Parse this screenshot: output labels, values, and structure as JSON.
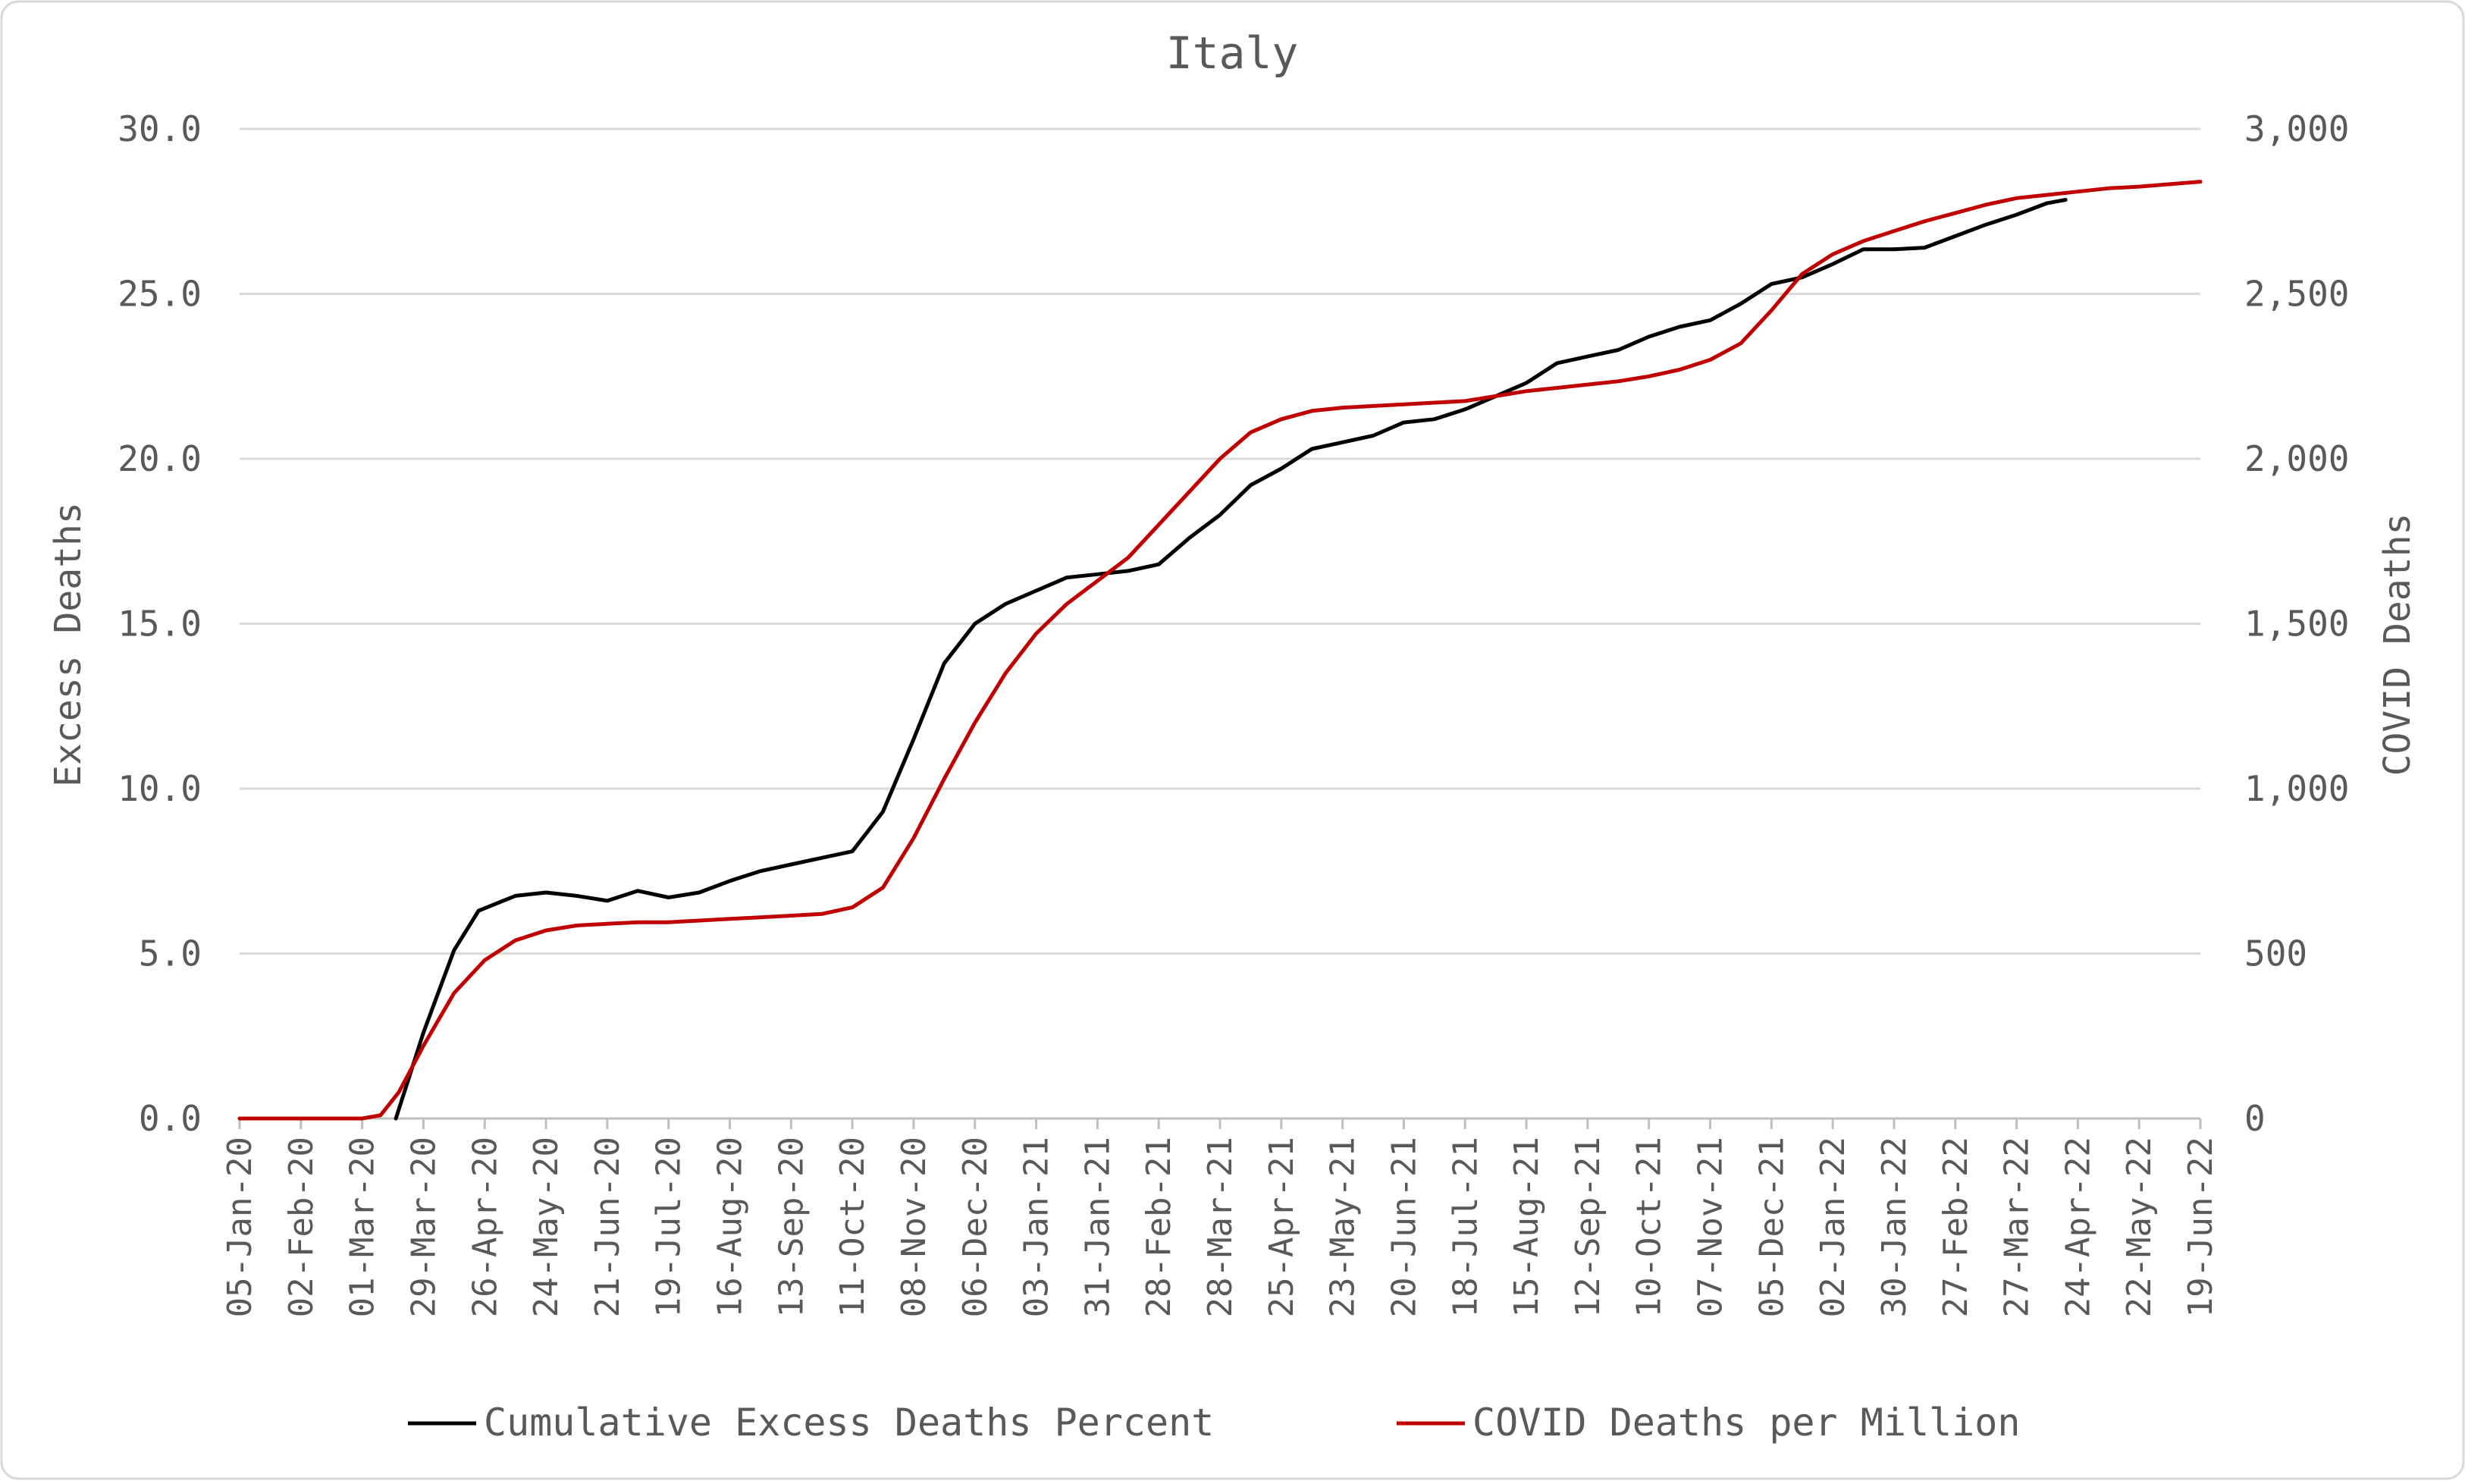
{
  "chart_data": {
    "type": "line",
    "title": "Italy",
    "ylabel_left": "Excess Deaths",
    "ylabel_right": "COVID Deaths",
    "y_left": {
      "min": 0,
      "max": 30,
      "ticks": [
        "0.0",
        "5.0",
        "10.0",
        "15.0",
        "20.0",
        "25.0",
        "30.0"
      ]
    },
    "y_right": {
      "min": 0,
      "max": 3000,
      "ticks": [
        "0",
        "500",
        "1,000",
        "1,500",
        "2,000",
        "2,500",
        "3,000"
      ]
    },
    "x_tick_labels": [
      "05-Jan-20",
      "02-Feb-20",
      "01-Mar-20",
      "29-Mar-20",
      "26-Apr-20",
      "24-May-20",
      "21-Jun-20",
      "19-Jul-20",
      "16-Aug-20",
      "13-Sep-20",
      "11-Oct-20",
      "08-Nov-20",
      "06-Dec-20",
      "03-Jan-21",
      "31-Jan-21",
      "28-Feb-21",
      "28-Mar-21",
      "25-Apr-21",
      "23-May-21",
      "20-Jun-21",
      "18-Jul-21",
      "15-Aug-21",
      "12-Sep-21",
      "10-Oct-21",
      "07-Nov-21",
      "05-Dec-21",
      "02-Jan-22",
      "30-Jan-22",
      "27-Feb-22",
      "27-Mar-22",
      "24-Apr-22",
      "22-May-22",
      "19-Jun-22"
    ],
    "grid": "horizontal",
    "legend_position": "bottom",
    "series": [
      {
        "name": "Cumulative Excess Deaths Percent",
        "axis": "left",
        "color": "#000000",
        "points": [
          [
            2.55,
            0
          ],
          [
            3.0,
            2.6
          ],
          [
            3.5,
            5.1
          ],
          [
            3.9,
            6.3
          ],
          [
            4.5,
            6.75
          ],
          [
            5.0,
            6.85
          ],
          [
            5.5,
            6.75
          ],
          [
            6.0,
            6.6
          ],
          [
            6.5,
            6.9
          ],
          [
            7.0,
            6.7
          ],
          [
            7.5,
            6.85
          ],
          [
            8.0,
            7.2
          ],
          [
            8.5,
            7.5
          ],
          [
            9.0,
            7.7
          ],
          [
            9.5,
            7.9
          ],
          [
            10.0,
            8.1
          ],
          [
            10.5,
            9.3
          ],
          [
            11.0,
            11.5
          ],
          [
            11.5,
            13.8
          ],
          [
            12.0,
            15.0
          ],
          [
            12.5,
            15.6
          ],
          [
            13.0,
            16.0
          ],
          [
            13.5,
            16.4
          ],
          [
            14.0,
            16.5
          ],
          [
            14.5,
            16.6
          ],
          [
            15.0,
            16.8
          ],
          [
            15.5,
            17.6
          ],
          [
            16.0,
            18.3
          ],
          [
            16.5,
            19.2
          ],
          [
            17.0,
            19.7
          ],
          [
            17.5,
            20.3
          ],
          [
            18.0,
            20.5
          ],
          [
            18.5,
            20.7
          ],
          [
            19.0,
            21.1
          ],
          [
            19.5,
            21.2
          ],
          [
            20.0,
            21.5
          ],
          [
            20.5,
            21.9
          ],
          [
            21.0,
            22.3
          ],
          [
            21.5,
            22.9
          ],
          [
            22.0,
            23.1
          ],
          [
            22.5,
            23.3
          ],
          [
            23.0,
            23.7
          ],
          [
            23.5,
            24.0
          ],
          [
            24.0,
            24.2
          ],
          [
            24.5,
            24.7
          ],
          [
            25.0,
            25.3
          ],
          [
            25.5,
            25.5
          ],
          [
            26.0,
            25.9
          ],
          [
            26.5,
            26.35
          ],
          [
            27.0,
            26.35
          ],
          [
            27.5,
            26.4
          ],
          [
            28.0,
            26.75
          ],
          [
            28.5,
            27.1
          ],
          [
            29.0,
            27.4
          ],
          [
            29.5,
            27.75
          ],
          [
            29.8,
            27.85
          ]
        ]
      },
      {
        "name": "COVID Deaths per Million",
        "axis": "right",
        "color": "#c00000",
        "points": [
          [
            0,
            0
          ],
          [
            1.0,
            0
          ],
          [
            2.0,
            0
          ],
          [
            2.3,
            10
          ],
          [
            2.6,
            80
          ],
          [
            3.0,
            220
          ],
          [
            3.5,
            380
          ],
          [
            4.0,
            480
          ],
          [
            4.5,
            540
          ],
          [
            5.0,
            570
          ],
          [
            5.5,
            585
          ],
          [
            6.0,
            590
          ],
          [
            6.5,
            595
          ],
          [
            7.0,
            595
          ],
          [
            7.5,
            600
          ],
          [
            8.0,
            605
          ],
          [
            8.5,
            610
          ],
          [
            9.0,
            615
          ],
          [
            9.5,
            620
          ],
          [
            10.0,
            640
          ],
          [
            10.5,
            700
          ],
          [
            11.0,
            850
          ],
          [
            11.5,
            1030
          ],
          [
            12.0,
            1200
          ],
          [
            12.5,
            1350
          ],
          [
            13.0,
            1470
          ],
          [
            13.5,
            1560
          ],
          [
            14.0,
            1630
          ],
          [
            14.5,
            1700
          ],
          [
            15.0,
            1800
          ],
          [
            15.5,
            1900
          ],
          [
            16.0,
            2000
          ],
          [
            16.5,
            2080
          ],
          [
            17.0,
            2120
          ],
          [
            17.5,
            2145
          ],
          [
            18.0,
            2155
          ],
          [
            18.5,
            2160
          ],
          [
            19.0,
            2165
          ],
          [
            19.5,
            2170
          ],
          [
            20.0,
            2175
          ],
          [
            20.5,
            2190
          ],
          [
            21.0,
            2205
          ],
          [
            21.5,
            2215
          ],
          [
            22.0,
            2225
          ],
          [
            22.5,
            2235
          ],
          [
            23.0,
            2250
          ],
          [
            23.5,
            2270
          ],
          [
            24.0,
            2300
          ],
          [
            24.5,
            2350
          ],
          [
            25.0,
            2450
          ],
          [
            25.5,
            2560
          ],
          [
            26.0,
            2620
          ],
          [
            26.5,
            2660
          ],
          [
            27.0,
            2690
          ],
          [
            27.5,
            2720
          ],
          [
            28.0,
            2745
          ],
          [
            28.5,
            2770
          ],
          [
            29.0,
            2790
          ],
          [
            29.5,
            2800
          ],
          [
            30.0,
            2810
          ],
          [
            30.5,
            2820
          ],
          [
            31.0,
            2825
          ],
          [
            32.0,
            2840
          ]
        ]
      }
    ]
  }
}
